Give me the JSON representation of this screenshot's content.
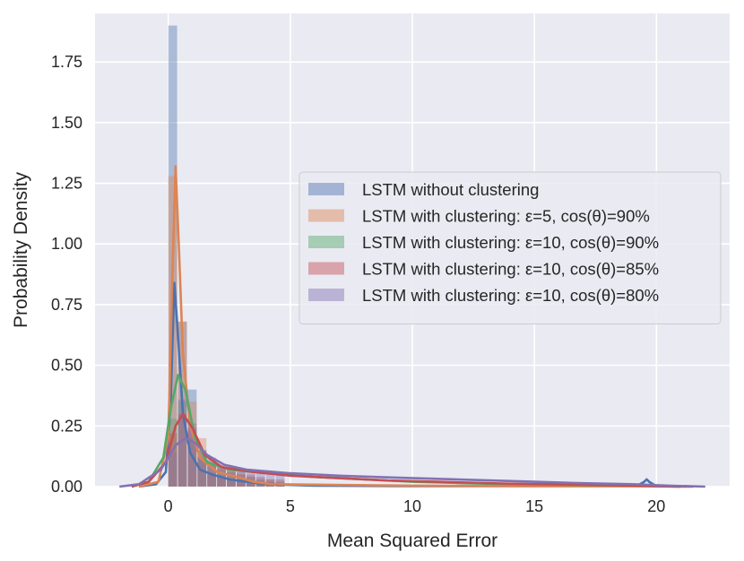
{
  "chart_data": {
    "type": "area",
    "title": "",
    "xlabel": "Mean Squared Error",
    "ylabel": "Probability Density",
    "xlim": [
      -3,
      23
    ],
    "ylim": [
      0,
      1.95
    ],
    "xticks": [
      0,
      5,
      10,
      15,
      20
    ],
    "yticks": [
      0.0,
      0.25,
      0.5,
      0.75,
      1.0,
      1.25,
      1.5,
      1.75
    ],
    "ytick_labels": [
      "0.00",
      "0.25",
      "0.50",
      "0.75",
      "1.00",
      "1.25",
      "1.50",
      "1.75"
    ],
    "grid": true,
    "legend_position": "center-right",
    "series": [
      {
        "name": "LSTM without clustering",
        "color": "#4c72b0",
        "hist_start": 0.0,
        "hist_bin_width": 0.4,
        "hist": [
          1.9,
          0.68,
          0.4,
          0.12,
          0.05,
          0.04,
          0.03,
          0.03,
          0.02,
          0.02,
          0.02,
          0.01
        ],
        "kde": [
          [
            -1.2,
            0
          ],
          [
            -0.5,
            0.01
          ],
          [
            -0.1,
            0.06
          ],
          [
            0.1,
            0.35
          ],
          [
            0.25,
            0.84
          ],
          [
            0.4,
            0.62
          ],
          [
            0.6,
            0.3
          ],
          [
            0.9,
            0.14
          ],
          [
            1.3,
            0.07
          ],
          [
            1.8,
            0.05
          ],
          [
            2.5,
            0.03
          ],
          [
            3.2,
            0.02
          ],
          [
            4,
            0.01
          ],
          [
            6,
            0.004
          ],
          [
            10,
            0.002
          ],
          [
            15,
            0.002
          ],
          [
            19.2,
            0.003
          ],
          [
            19.5,
            0.02
          ],
          [
            19.6,
            0.03
          ],
          [
            19.7,
            0.02
          ],
          [
            20,
            0.002
          ],
          [
            21,
            0
          ]
        ]
      },
      {
        "name": "LSTM with clustering: ε=5, cos(θ)=90%",
        "color": "#dd8452",
        "hist_start": 0.0,
        "hist_bin_width": 0.4,
        "hist": [
          1.28,
          0.68,
          0.35,
          0.2,
          0.12,
          0.08,
          0.06,
          0.05,
          0.04,
          0.03,
          0.03,
          0.02
        ],
        "kde": [
          [
            -1.2,
            0
          ],
          [
            -0.4,
            0.02
          ],
          [
            0,
            0.2
          ],
          [
            0.15,
            0.8
          ],
          [
            0.3,
            1.32
          ],
          [
            0.45,
            0.95
          ],
          [
            0.6,
            0.55
          ],
          [
            0.9,
            0.25
          ],
          [
            1.3,
            0.12
          ],
          [
            2,
            0.06
          ],
          [
            2.8,
            0.04
          ],
          [
            3.5,
            0.02
          ],
          [
            4.2,
            0.01
          ],
          [
            6,
            0.008
          ],
          [
            10,
            0.004
          ],
          [
            15,
            0.002
          ],
          [
            19,
            0.001
          ],
          [
            21,
            0
          ]
        ]
      },
      {
        "name": "LSTM with clustering: ε=10, cos(θ)=90%",
        "color": "#55a868",
        "hist_start": 0.0,
        "hist_bin_width": 0.4,
        "hist": [
          0.28,
          0.35,
          0.2,
          0.12,
          0.09,
          0.07,
          0.06,
          0.05,
          0.04,
          0.03,
          0.02,
          0.02
        ],
        "kde": [
          [
            -1.5,
            0
          ],
          [
            -0.8,
            0.02
          ],
          [
            -0.2,
            0.12
          ],
          [
            0.1,
            0.32
          ],
          [
            0.4,
            0.46
          ],
          [
            0.7,
            0.4
          ],
          [
            1.1,
            0.2
          ],
          [
            1.6,
            0.1
          ],
          [
            2.5,
            0.07
          ],
          [
            4,
            0.055
          ],
          [
            6,
            0.04
          ],
          [
            8,
            0.03
          ],
          [
            10,
            0.02
          ],
          [
            13,
            0.012
          ],
          [
            16,
            0.008
          ],
          [
            19,
            0.005
          ],
          [
            20,
            0.002
          ],
          [
            21,
            0
          ]
        ]
      },
      {
        "name": "LSTM with clustering: ε=10, cos(θ)=85%",
        "color": "#c44e52",
        "hist_start": 0.0,
        "hist_bin_width": 0.4,
        "hist": [
          0.22,
          0.3,
          0.24,
          0.15,
          0.1,
          0.08,
          0.07,
          0.06,
          0.05,
          0.04,
          0.03,
          0.03
        ],
        "kde": [
          [
            -1.5,
            0
          ],
          [
            -0.8,
            0.02
          ],
          [
            -0.1,
            0.1
          ],
          [
            0.3,
            0.25
          ],
          [
            0.6,
            0.3
          ],
          [
            1,
            0.24
          ],
          [
            1.5,
            0.13
          ],
          [
            2.2,
            0.08
          ],
          [
            3.5,
            0.06
          ],
          [
            5,
            0.045
          ],
          [
            7,
            0.035
          ],
          [
            9,
            0.025
          ],
          [
            11,
            0.02
          ],
          [
            14,
            0.012
          ],
          [
            17,
            0.008
          ],
          [
            19,
            0.005
          ],
          [
            20.5,
            0.001
          ],
          [
            21.5,
            0
          ]
        ]
      },
      {
        "name": "LSTM with clustering: ε=10, cos(θ)=80%",
        "color": "#8172b3",
        "hist_start": 0.0,
        "hist_bin_width": 0.4,
        "hist": [
          0.14,
          0.36,
          0.26,
          0.15,
          0.11,
          0.09,
          0.08,
          0.07,
          0.06,
          0.06,
          0.05,
          0.05
        ],
        "kde": [
          [
            -2,
            0
          ],
          [
            -1.2,
            0.01
          ],
          [
            -0.3,
            0.07
          ],
          [
            0.3,
            0.17
          ],
          [
            0.7,
            0.2
          ],
          [
            1.1,
            0.18
          ],
          [
            1.6,
            0.13
          ],
          [
            2.3,
            0.09
          ],
          [
            3.2,
            0.07
          ],
          [
            5,
            0.055
          ],
          [
            7,
            0.045
          ],
          [
            9,
            0.038
          ],
          [
            11,
            0.032
          ],
          [
            13,
            0.026
          ],
          [
            15,
            0.02
          ],
          [
            17,
            0.014
          ],
          [
            19,
            0.01
          ],
          [
            20.5,
            0.004
          ],
          [
            22,
            0
          ]
        ]
      }
    ]
  }
}
